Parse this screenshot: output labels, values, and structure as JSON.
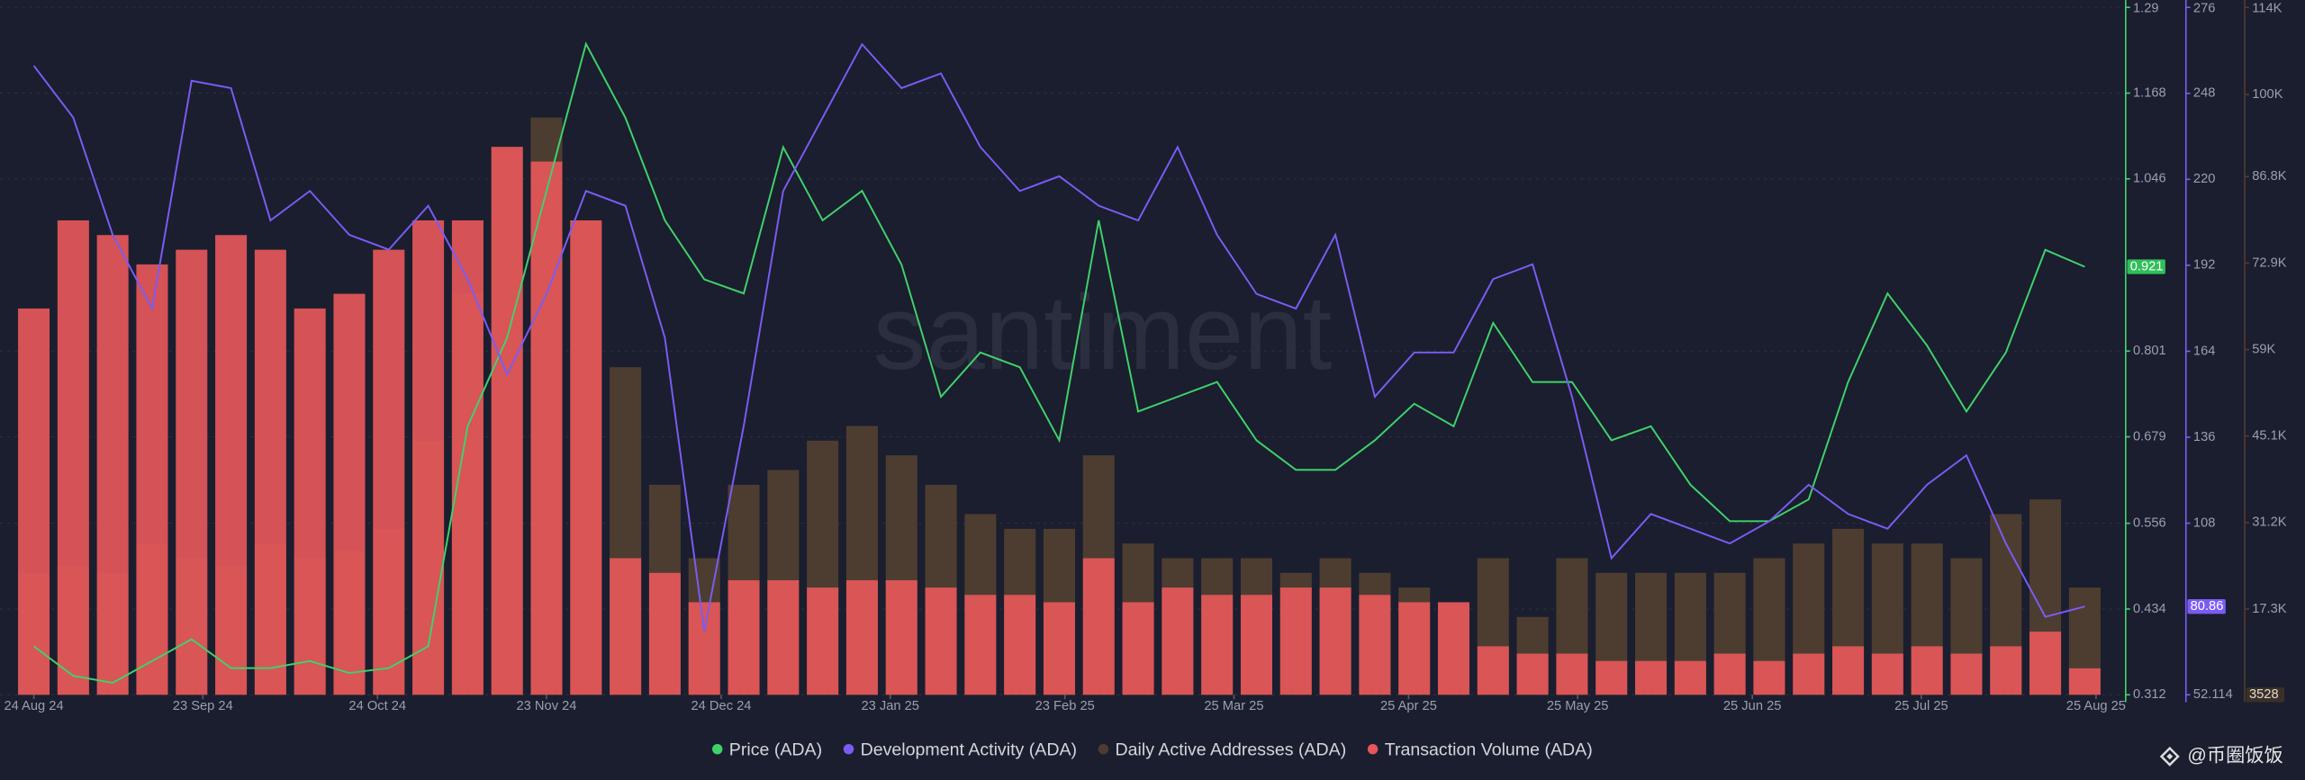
{
  "chart_data": {
    "type": "bar-line",
    "watermark": "santiment",
    "attribution": "@币圈饭饭",
    "x": [
      "2024-08-24",
      "2024-08-31",
      "2024-09-07",
      "2024-09-14",
      "2024-09-21",
      "2024-09-28",
      "2024-10-05",
      "2024-10-12",
      "2024-10-19",
      "2024-10-26",
      "2024-11-02",
      "2024-11-09",
      "2024-11-16",
      "2024-11-23",
      "2024-11-30",
      "2024-12-07",
      "2024-12-14",
      "2024-12-21",
      "2024-12-28",
      "2025-01-04",
      "2025-01-11",
      "2025-01-18",
      "2025-01-25",
      "2025-02-01",
      "2025-02-08",
      "2025-02-15",
      "2025-02-22",
      "2025-03-01",
      "2025-03-08",
      "2025-03-15",
      "2025-03-22",
      "2025-03-29",
      "2025-04-05",
      "2025-04-12",
      "2025-04-19",
      "2025-04-26",
      "2025-05-03",
      "2025-05-10",
      "2025-05-17",
      "2025-05-24",
      "2025-05-31",
      "2025-06-07",
      "2025-06-14",
      "2025-06-21",
      "2025-06-28",
      "2025-07-05",
      "2025-07-12",
      "2025-07-19",
      "2025-07-26",
      "2025-08-02",
      "2025-08-09",
      "2025-08-16",
      "2025-08-23"
    ],
    "xlim": [
      "2024-08-18",
      "2025-08-30"
    ],
    "xticks": [
      {
        "value": "2024-08-24",
        "label": "24 Aug 24"
      },
      {
        "value": "2024-09-23",
        "label": "23 Sep 24"
      },
      {
        "value": "2024-10-24",
        "label": "24 Oct 24"
      },
      {
        "value": "2024-11-23",
        "label": "23 Nov 24"
      },
      {
        "value": "2024-12-24",
        "label": "24 Dec 24"
      },
      {
        "value": "2025-01-23",
        "label": "23 Jan 25"
      },
      {
        "value": "2025-02-23",
        "label": "23 Feb 25"
      },
      {
        "value": "2025-03-25",
        "label": "25 Mar 25"
      },
      {
        "value": "2025-04-25",
        "label": "25 Apr 25"
      },
      {
        "value": "2025-05-25",
        "label": "25 May 25"
      },
      {
        "value": "2025-06-25",
        "label": "25 Jun 25"
      },
      {
        "value": "2025-07-25",
        "label": "25 Jul 25"
      },
      {
        "value": "2025-08-25",
        "label": "25 Aug 25"
      }
    ],
    "ylim": [
      0.312,
      1.29
    ],
    "yticks": [
      1.29,
      1.168,
      1.046,
      0.801,
      0.679,
      0.556,
      0.434,
      0.312
    ],
    "y2lim": [
      52.114,
      276
    ],
    "y2ticks": [
      276,
      248,
      220,
      192,
      164,
      136,
      108,
      52.114
    ],
    "y3lim": [
      3528,
      114000
    ],
    "y3ticks": [
      {
        "value": 114000,
        "label": "114K"
      },
      {
        "value": 100000,
        "label": "100K"
      },
      {
        "value": 86800,
        "label": "86.8K"
      },
      {
        "value": 72900,
        "label": "72.9K"
      },
      {
        "value": 59000,
        "label": "59K"
      },
      {
        "value": 45100,
        "label": "45.1K"
      },
      {
        "value": 31200,
        "label": "31.2K"
      },
      {
        "value": 17300,
        "label": "17.3K"
      }
    ],
    "grid": true,
    "series": [
      {
        "name": "Price (ADA)",
        "color": "#3fd26b",
        "kind": "line",
        "axis": "y",
        "values": [
          0.381,
          0.339,
          0.329,
          0.36,
          0.391,
          0.35,
          0.35,
          0.36,
          0.343,
          0.35,
          0.381,
          0.694,
          0.82,
          1.029,
          1.238,
          1.133,
          0.987,
          0.903,
          0.883,
          1.091,
          0.987,
          1.029,
          0.924,
          0.736,
          0.799,
          0.778,
          0.674,
          0.987,
          0.715,
          0.736,
          0.757,
          0.674,
          0.632,
          0.632,
          0.674,
          0.726,
          0.694,
          0.841,
          0.757,
          0.757,
          0.674,
          0.694,
          0.611,
          0.559,
          0.559,
          0.59,
          0.757,
          0.883,
          0.809,
          0.715,
          0.799,
          0.945,
          0.921
        ]
      },
      {
        "name": "Development Activity (ADA)",
        "color": "#7a5cf5",
        "kind": "line",
        "axis": "y2",
        "values": [
          257.0,
          240.1,
          201.9,
          177.9,
          252.1,
          249.7,
          206.6,
          216.2,
          201.9,
          197.1,
          211.4,
          187.5,
          156.4,
          182.7,
          216.2,
          211.4,
          168.4,
          72.7,
          139.7,
          216.2,
          240.1,
          264.0,
          249.7,
          254.5,
          230.5,
          216.2,
          221.0,
          211.4,
          206.6,
          230.5,
          201.9,
          182.7,
          177.9,
          201.9,
          149.2,
          163.6,
          163.6,
          187.5,
          192.3,
          149.2,
          96.6,
          111.0,
          106.2,
          101.4,
          108.6,
          120.5,
          111.0,
          106.2,
          120.5,
          130.1,
          101.4,
          77.5,
          80.86
        ]
      },
      {
        "name": "Daily Active Addresses (ADA)",
        "color": "#4d3d30",
        "kind": "bar",
        "axis": "y3",
        "values": [
          23120,
          24300,
          23120,
          27840,
          25480,
          24300,
          27840,
          25480,
          26660,
          30200,
          44360,
          67970,
          91580,
          96300,
          79770,
          56170,
          37280,
          25480,
          37280,
          39640,
          44360,
          46720,
          42000,
          37280,
          32560,
          30200,
          30200,
          42000,
          27840,
          25480,
          25480,
          25480,
          23120,
          25480,
          23120,
          20760,
          18400,
          25480,
          16040,
          25480,
          23120,
          23120,
          23120,
          23120,
          25480,
          27840,
          30200,
          27840,
          27840,
          25480,
          32560,
          34920,
          20760
        ]
      },
      {
        "name": "Transaction Volume (ADA)",
        "color": "#e5575a",
        "kind": "bar",
        "axis": "y3",
        "values": [
          65610,
          79770,
          77410,
          72690,
          75050,
          77410,
          75050,
          65610,
          67970,
          75050,
          79770,
          79770,
          91580,
          89220,
          79770,
          25480,
          23120,
          18400,
          21940,
          21940,
          20760,
          21940,
          21940,
          20760,
          19580,
          19580,
          18400,
          25480,
          18400,
          20760,
          19580,
          19580,
          20760,
          20760,
          19580,
          18400,
          18400,
          11320,
          10140,
          10140,
          8960,
          8960,
          8960,
          10140,
          8960,
          10140,
          11320,
          10140,
          11320,
          10140,
          11320,
          13680,
          7780
        ]
      }
    ]
  }
}
